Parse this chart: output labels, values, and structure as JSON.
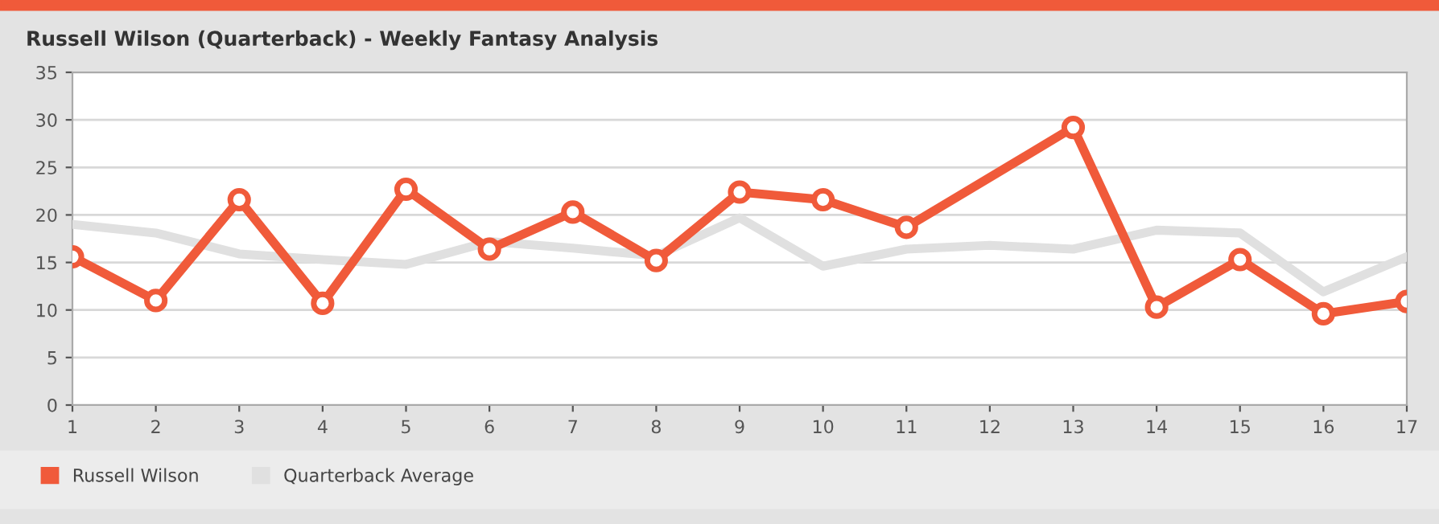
{
  "chart_data": {
    "type": "line",
    "title": "Russell Wilson (Quarterback) - Weekly Fantasy Analysis",
    "x": [
      1,
      2,
      3,
      4,
      5,
      6,
      7,
      8,
      9,
      10,
      11,
      12,
      13,
      14,
      15,
      16,
      17
    ],
    "series": [
      {
        "name": "Russell Wilson",
        "color": "#f05a3a",
        "marker": "circle",
        "values": [
          15.6,
          11.0,
          21.6,
          10.7,
          22.7,
          16.4,
          20.3,
          15.2,
          22.4,
          21.6,
          18.7,
          null,
          29.2,
          10.3,
          15.3,
          9.6,
          10.9
        ]
      },
      {
        "name": "Quarterback Average",
        "color": "#e0e0e0",
        "marker": "none",
        "values": [
          19.0,
          18.1,
          15.9,
          15.3,
          14.8,
          17.2,
          16.5,
          15.7,
          19.7,
          14.6,
          16.4,
          16.8,
          16.4,
          18.4,
          18.1,
          11.9,
          15.6
        ]
      }
    ],
    "xlim": [
      1,
      17
    ],
    "xticks": [
      1,
      2,
      3,
      4,
      5,
      6,
      7,
      8,
      9,
      10,
      11,
      12,
      13,
      14,
      15,
      16,
      17
    ],
    "ylim": [
      0,
      35
    ],
    "yticks": [
      0,
      5,
      10,
      15,
      20,
      25,
      30,
      35
    ],
    "grid": "y",
    "legend": "bottom",
    "line_style": "solid"
  }
}
